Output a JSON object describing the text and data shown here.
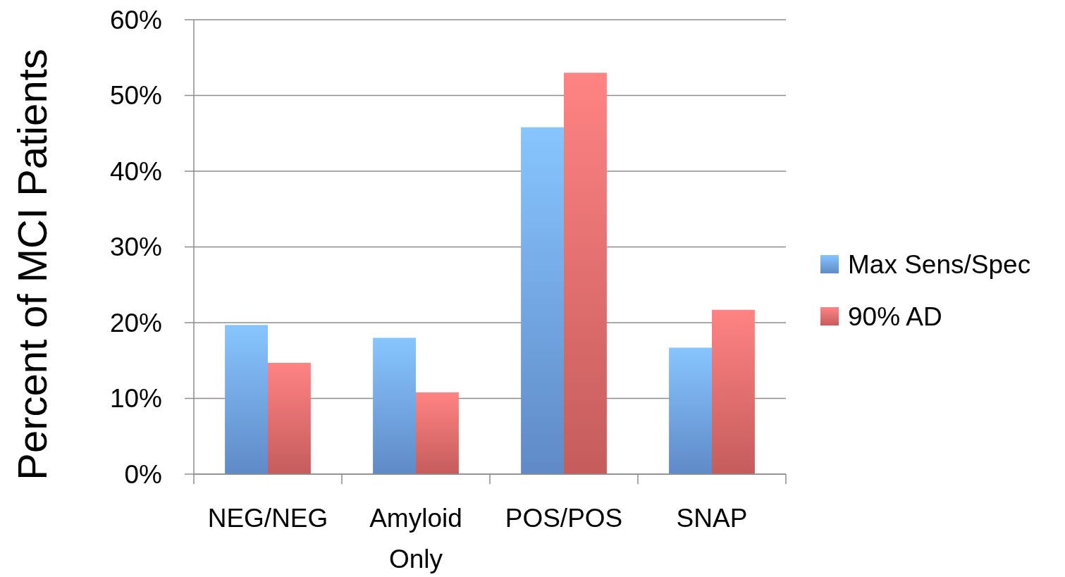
{
  "chart_data": {
    "type": "bar",
    "ylabel": "Percent of MCI Patients",
    "categories": [
      "NEG/NEG",
      "Amyloid Only",
      "POS/POS",
      "SNAP"
    ],
    "series": [
      {
        "name": "Max Sens/Spec",
        "color": "#6d9fe6",
        "values": [
          19.7,
          18.0,
          45.8,
          16.7
        ]
      },
      {
        "name": "90% AD",
        "color": "#e36a6a",
        "values": [
          14.7,
          10.8,
          53.0,
          21.7
        ]
      }
    ],
    "ylim": [
      0,
      60
    ],
    "yticks": [
      {
        "value": 0,
        "label": "0%"
      },
      {
        "value": 10,
        "label": "10%"
      },
      {
        "value": 20,
        "label": "20%"
      },
      {
        "value": 30,
        "label": "30%"
      },
      {
        "value": 40,
        "label": "40%"
      },
      {
        "value": 50,
        "label": "50%"
      },
      {
        "value": 60,
        "label": "60%"
      }
    ],
    "grid": "y",
    "legend": "right"
  }
}
